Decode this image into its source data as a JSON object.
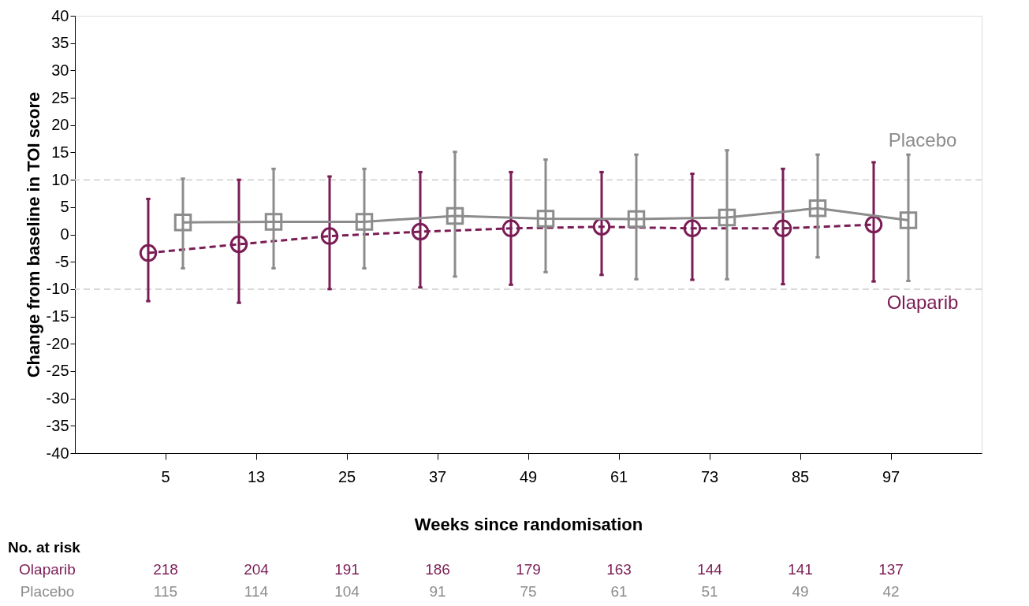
{
  "chart_data": {
    "type": "line",
    "xlabel": "Weeks since randomisation",
    "ylabel": "Change from baseline in TOI score",
    "categories": [
      "5",
      "13",
      "25",
      "37",
      "49",
      "61",
      "73",
      "85",
      "97"
    ],
    "series": [
      {
        "name": "Olaparib",
        "color": "#7b1d55",
        "marker": "circle",
        "line_style": "dashed",
        "values": [
          -3.4,
          -1.8,
          -0.3,
          0.5,
          1.1,
          1.4,
          1.1,
          1.1,
          1.8
        ],
        "errors": [
          [
            -12.2,
            6.5
          ],
          [
            -12.5,
            10
          ],
          [
            -10,
            10.6
          ],
          [
            -9.7,
            11.4
          ],
          [
            -9.2,
            11.4
          ],
          [
            -7.4,
            11.4
          ],
          [
            -8.3,
            11.1
          ],
          [
            -9.1,
            12
          ],
          [
            -8.6,
            13.2
          ]
        ]
      },
      {
        "name": "Placebo",
        "color": "#8c8c8c",
        "marker": "square",
        "line_style": "solid",
        "values": [
          2.2,
          2.3,
          2.3,
          3.4,
          2.9,
          2.8,
          3.1,
          4.8,
          2.6
        ],
        "errors": [
          [
            -6.2,
            10.2
          ],
          [
            -6.2,
            12
          ],
          [
            -6.2,
            12
          ],
          [
            -7.7,
            15.1
          ],
          [
            -6.9,
            13.7
          ],
          [
            -8.2,
            14.6
          ],
          [
            -8.2,
            15.4
          ],
          [
            -4.2,
            14.6
          ],
          [
            -8.5,
            14.6
          ]
        ]
      }
    ],
    "ylim": [
      -40,
      40
    ],
    "yticks": [
      -40,
      -35,
      -30,
      -25,
      -20,
      -15,
      -10,
      -5,
      0,
      5,
      10,
      15,
      20,
      25,
      30,
      35,
      40
    ],
    "grid": false,
    "legend": "right",
    "ref_lines": [
      {
        "axis": "y",
        "value": 10,
        "color": "#d9d9d9",
        "line_style": "dashed"
      },
      {
        "axis": "y",
        "value": -10,
        "color": "#d9d9d9",
        "line_style": "dashed"
      }
    ],
    "annotations": [
      "No. at risk",
      "Olaparib",
      "218",
      "204",
      "191",
      "186",
      "179",
      "163",
      "144",
      "141",
      "137",
      "Placebo",
      "115",
      "114",
      "104",
      "91",
      "75",
      "61",
      "51",
      "49",
      "42"
    ]
  }
}
